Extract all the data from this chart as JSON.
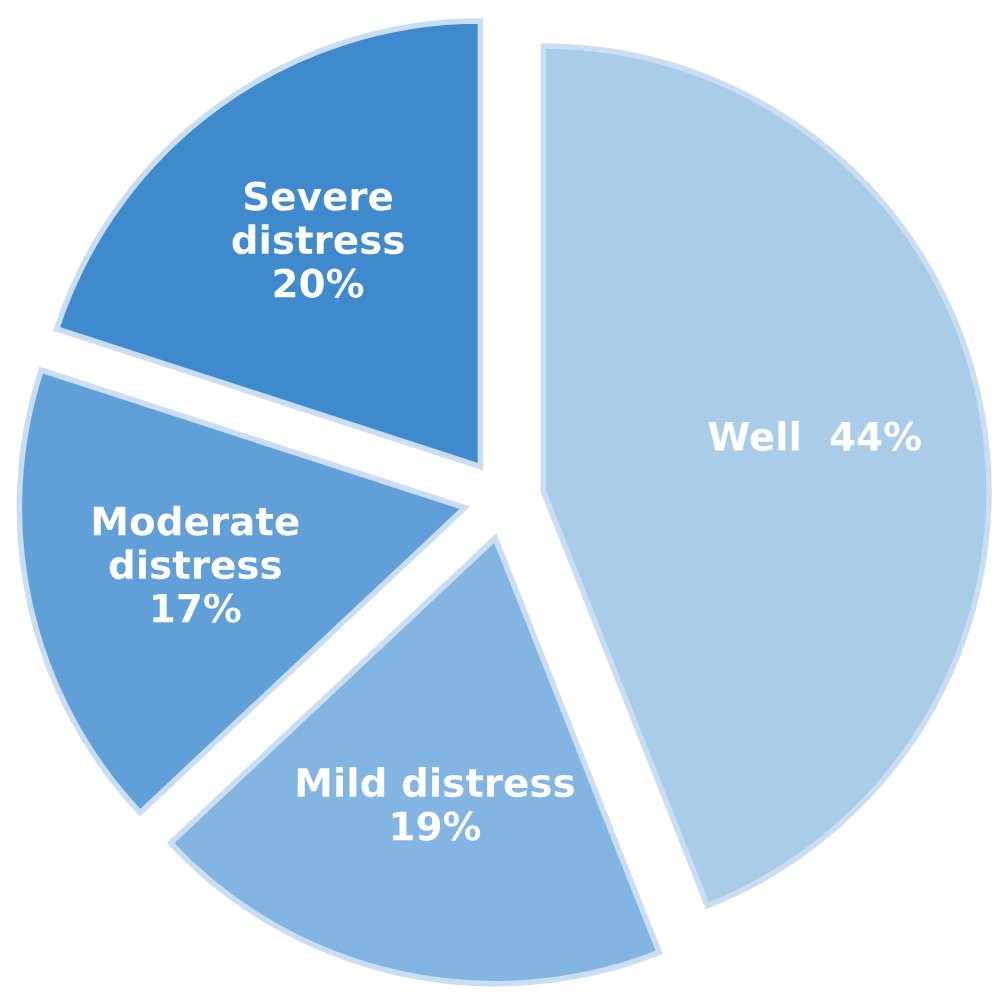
{
  "chart_data": {
    "type": "pie",
    "categories": [
      "Well",
      "Mild distress",
      "Moderate\ndistress",
      "Severe\ndistress"
    ],
    "values": [
      44,
      19,
      17,
      20
    ],
    "value_labels": [
      "44%",
      "19%",
      "17%",
      "20%"
    ],
    "colors": [
      "#a9cce9",
      "#82b5e1",
      "#619fd8",
      "#3f89cd"
    ],
    "legend": false
  }
}
